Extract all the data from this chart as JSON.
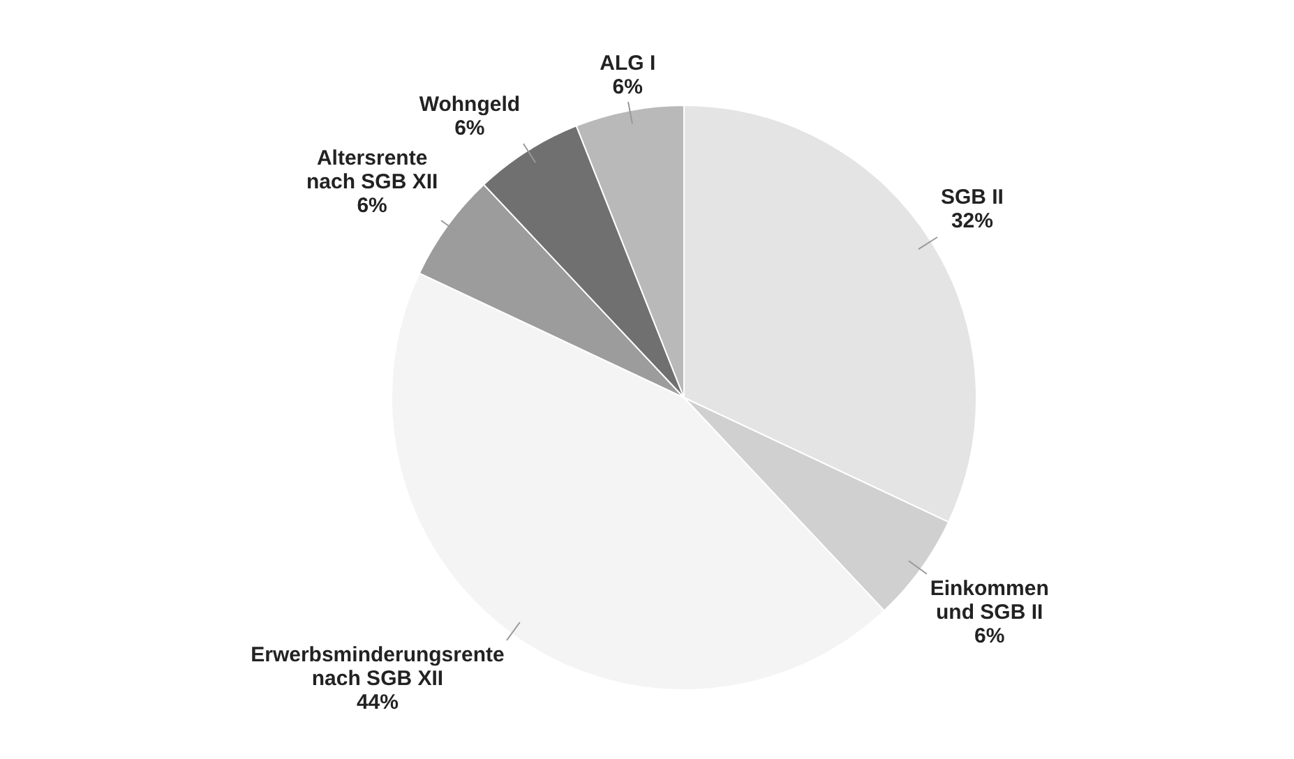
{
  "chart_data": {
    "type": "pie",
    "categories": [
      "SGB II",
      "Einkommen und SGB II",
      "Erwerbsminderungsrente nach SGB XII",
      "Altersrente nach SGB XII",
      "Wohngeld",
      "ALG I"
    ],
    "values": [
      32,
      6,
      44,
      6,
      6,
      6
    ],
    "value_labels": [
      "32%",
      "6%",
      "44%",
      "6%",
      "6%",
      "6%"
    ],
    "colors": [
      "#e4e4e4",
      "#d0d0d0",
      "#f4f4f4",
      "#9c9c9c",
      "#707070",
      "#b9b9b9"
    ],
    "legend": false
  }
}
